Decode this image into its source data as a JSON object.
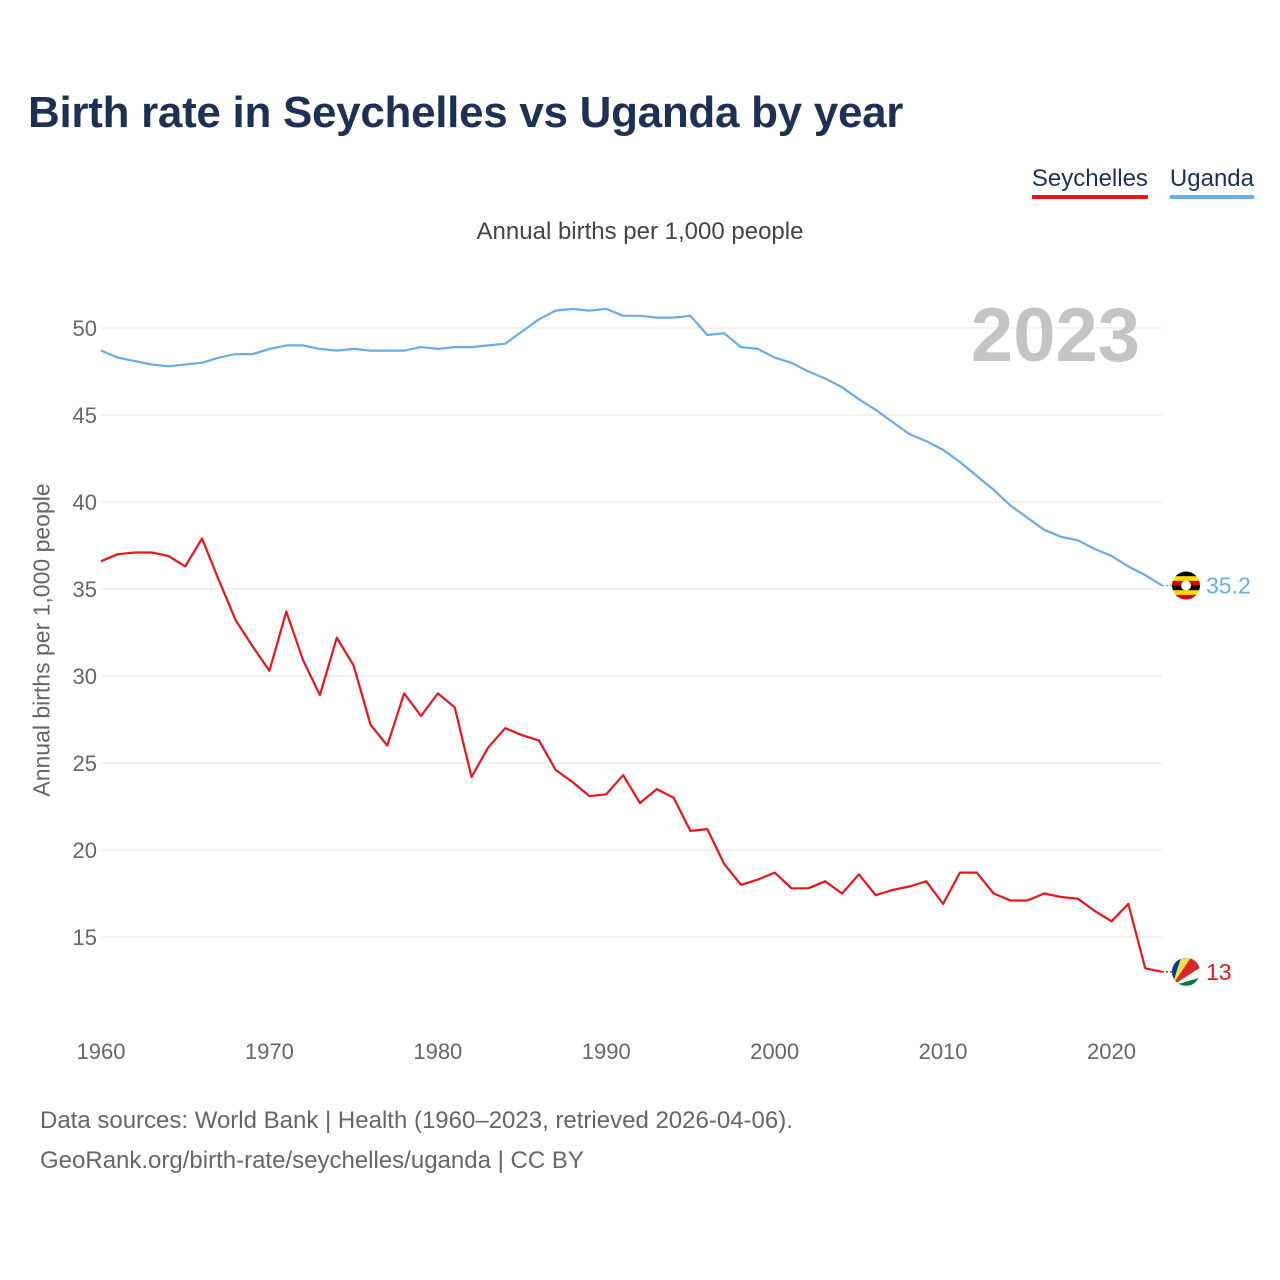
{
  "title": "Birth rate in Seychelles vs Uganda by year",
  "legend": {
    "items": [
      {
        "label": "Seychelles",
        "color": "#e8161c"
      },
      {
        "label": "Uganda",
        "color": "#6aace4"
      }
    ]
  },
  "subtitle": "Annual births per 1,000 people",
  "year_label": "2023",
  "footer": {
    "sources": "Data sources: World Bank | Health (1960–2023, retrieved 2026-04-06).",
    "credit": "GeoRank.org/birth-rate/seychelles/uganda | CC BY"
  },
  "chart_data": {
    "type": "line",
    "title": "Birth rate in Seychelles vs Uganda by year",
    "xlabel": "",
    "ylabel": "Annual births per 1,000 people",
    "xlim": [
      1960,
      2023
    ],
    "ylim": [
      10.9,
      53.8
    ],
    "x_ticks": [
      1960,
      1970,
      1980,
      1990,
      2000,
      2010,
      2020
    ],
    "y_ticks": [
      15,
      20,
      25,
      30,
      35,
      40,
      45,
      50
    ],
    "grid": true,
    "legend_position": "top-right",
    "series": [
      {
        "name": "Uganda",
        "color": "#6aace4",
        "end_label": "35.2",
        "x_start": 1960,
        "values": [
          48.7,
          48.3,
          48.1,
          47.9,
          47.8,
          47.9,
          48.0,
          48.3,
          48.5,
          48.5,
          48.8,
          49.0,
          49.0,
          48.8,
          48.7,
          48.8,
          48.7,
          48.7,
          48.7,
          48.9,
          48.8,
          48.9,
          48.9,
          49.0,
          49.1,
          49.8,
          50.5,
          51.0,
          51.1,
          51.0,
          51.1,
          50.7,
          50.7,
          50.6,
          50.6,
          50.7,
          49.6,
          49.7,
          48.9,
          48.8,
          48.3,
          48.0,
          47.5,
          47.1,
          46.6,
          45.9,
          45.3,
          44.6,
          43.9,
          43.5,
          43.0,
          42.3,
          41.5,
          40.7,
          39.8,
          39.1,
          38.4,
          38.0,
          37.8,
          37.3,
          36.9,
          36.3,
          35.8,
          35.2
        ]
      },
      {
        "name": "Seychelles",
        "color": "#e8161c",
        "end_label": "13",
        "x_start": 1960,
        "values": [
          36.6,
          37.0,
          37.1,
          37.1,
          36.9,
          36.3,
          37.9,
          35.5,
          33.2,
          31.7,
          30.3,
          33.7,
          30.9,
          28.9,
          32.2,
          30.6,
          27.2,
          26.0,
          29.0,
          27.7,
          29.0,
          28.2,
          24.2,
          25.9,
          27.0,
          26.6,
          26.3,
          24.6,
          23.9,
          23.1,
          23.2,
          24.3,
          22.7,
          23.5,
          23.0,
          21.1,
          21.2,
          19.2,
          18.0,
          18.3,
          18.7,
          17.8,
          17.8,
          18.2,
          17.5,
          18.6,
          17.4,
          17.7,
          17.9,
          18.2,
          16.9,
          18.7,
          18.7,
          17.5,
          17.1,
          17.1,
          17.5,
          17.3,
          17.2,
          16.5,
          15.9,
          16.9,
          13.2,
          13.0
        ]
      }
    ]
  }
}
